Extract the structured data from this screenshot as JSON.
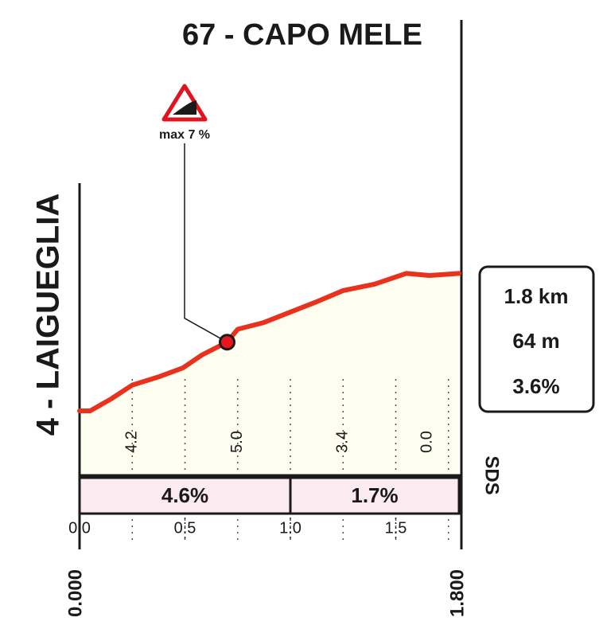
{
  "chart_data": {
    "type": "area",
    "title": "67 - CAPO MELE",
    "start_label": "4 - LAIGUEGLIA",
    "start_km_label": "0.000",
    "end_km_label": "1.800",
    "info": [
      "1.8 km",
      "64 m",
      "3.6%"
    ],
    "logo": "SDS",
    "x": [
      0,
      0.05,
      0.15,
      0.25,
      0.38,
      0.49,
      0.58,
      0.7,
      0.75,
      0.87,
      1.0,
      1.13,
      1.25,
      1.4,
      1.55,
      1.66,
      1.8
    ],
    "series": [
      {
        "color": "#e8321e",
        "values": [
          0,
          0,
          5.6,
          12,
          16,
          20,
          26,
          32,
          38,
          41,
          46,
          51,
          56,
          59,
          64,
          63,
          64
        ]
      }
    ],
    "fill": "#fdfdf0",
    "xlim": [
      0,
      1.8
    ],
    "ylim": [
      -30,
      106
    ],
    "xticks": [
      {
        "value": 0,
        "label": "0.0"
      },
      0.5,
      {
        "value": 1,
        "label": "1.0"
      },
      1.5
    ],
    "xgrid": [
      0.25,
      0.5,
      0.75,
      1.0,
      1.25,
      1.5,
      1.75
    ],
    "gradients": {
      "edges": [
        0,
        0.5,
        1.0,
        1.5,
        1.8
      ],
      "values": [
        4.2,
        5,
        3.4,
        0
      ],
      "value_labels": [
        "4.2",
        "5.0",
        "3.4",
        "0.0"
      ]
    },
    "band": {
      "edges": [
        0,
        1.0,
        1.8
      ],
      "values": [
        4.6,
        1.7
      ],
      "value_labels": [
        "4.6%",
        "1.7%"
      ],
      "color": "#fbeaf0"
    },
    "marker": {
      "x": 0.7,
      "y": 32,
      "label": "max 7 %",
      "color": "#e8141e"
    }
  }
}
